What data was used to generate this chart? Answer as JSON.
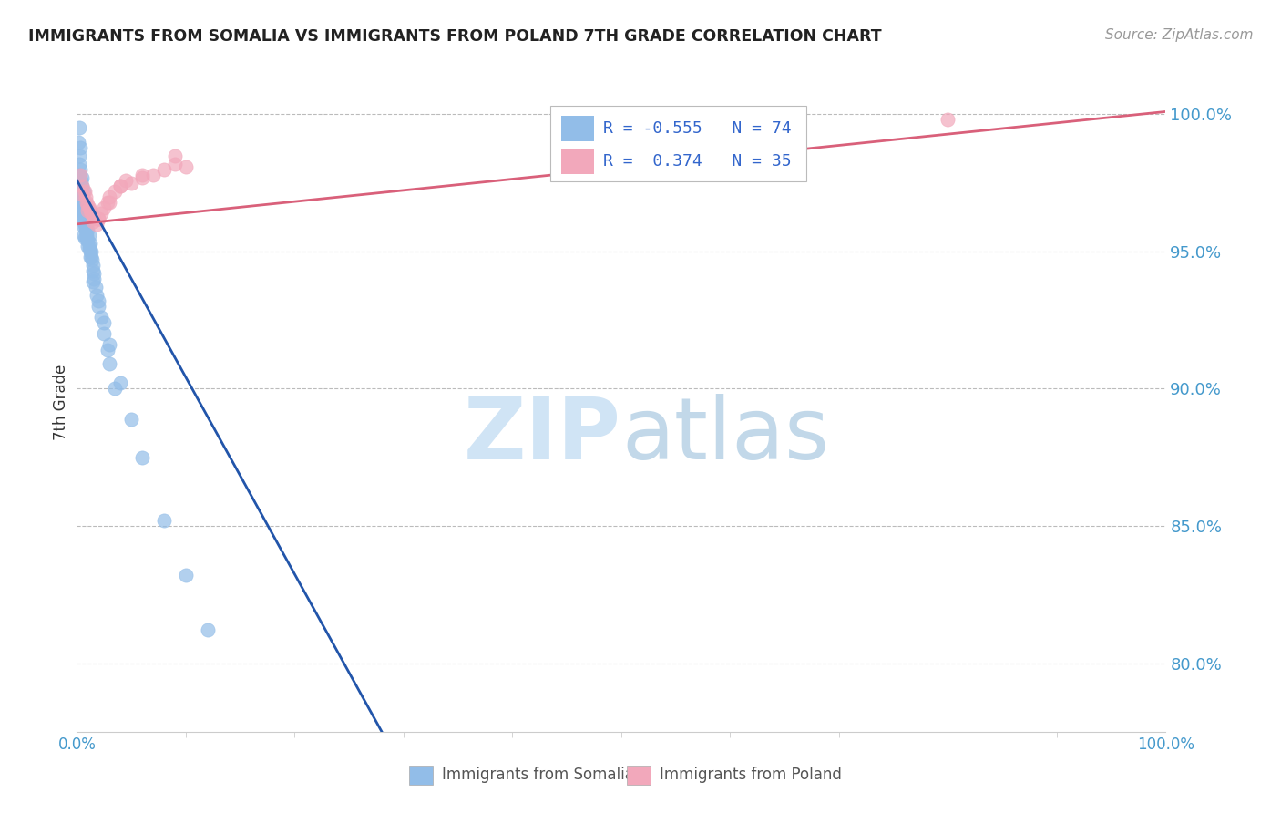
{
  "title": "IMMIGRANTS FROM SOMALIA VS IMMIGRANTS FROM POLAND 7TH GRADE CORRELATION CHART",
  "source": "Source: ZipAtlas.com",
  "ylabel": "7th Grade",
  "y_tick_vals": [
    0.8,
    0.85,
    0.9,
    0.95,
    1.0
  ],
  "xmin": 0.0,
  "xmax": 1.0,
  "ymin": 0.775,
  "ymax": 1.015,
  "somalia_color": "#92BDE8",
  "poland_color": "#F2A8BB",
  "somalia_line_color": "#2255AA",
  "poland_line_color": "#D9607A",
  "background": "#FFFFFF",
  "grid_color": "#BBBBBB",
  "ytick_color": "#4499CC",
  "xtick_color": "#4499CC",
  "watermark_color": "#D0E4F5",
  "legend_text_color": "#3366CC",
  "title_color": "#222222",
  "source_color": "#999999",
  "bottom_label_color": "#555555",
  "somalia_scatter_x": [
    0.001,
    0.002,
    0.002,
    0.003,
    0.003,
    0.004,
    0.004,
    0.005,
    0.005,
    0.005,
    0.006,
    0.006,
    0.006,
    0.007,
    0.007,
    0.007,
    0.008,
    0.008,
    0.009,
    0.009,
    0.01,
    0.01,
    0.011,
    0.011,
    0.012,
    0.012,
    0.013,
    0.014,
    0.015,
    0.016,
    0.002,
    0.003,
    0.003,
    0.004,
    0.004,
    0.005,
    0.005,
    0.006,
    0.006,
    0.007,
    0.008,
    0.009,
    0.01,
    0.011,
    0.012,
    0.013,
    0.015,
    0.016,
    0.017,
    0.018,
    0.02,
    0.022,
    0.025,
    0.028,
    0.03,
    0.035,
    0.002,
    0.003,
    0.004,
    0.005,
    0.006,
    0.007,
    0.008,
    0.009,
    0.015,
    0.02,
    0.025,
    0.03,
    0.04,
    0.05,
    0.06,
    0.08,
    0.1,
    0.12
  ],
  "somalia_scatter_y": [
    0.99,
    0.985,
    0.978,
    0.975,
    0.97,
    0.972,
    0.966,
    0.968,
    0.974,
    0.963,
    0.967,
    0.961,
    0.956,
    0.965,
    0.96,
    0.955,
    0.962,
    0.958,
    0.96,
    0.955,
    0.958,
    0.952,
    0.956,
    0.951,
    0.953,
    0.948,
    0.95,
    0.947,
    0.945,
    0.942,
    0.982,
    0.98,
    0.973,
    0.968,
    0.963,
    0.971,
    0.965,
    0.964,
    0.959,
    0.963,
    0.959,
    0.956,
    0.954,
    0.952,
    0.95,
    0.948,
    0.943,
    0.94,
    0.937,
    0.934,
    0.93,
    0.926,
    0.92,
    0.914,
    0.909,
    0.9,
    0.995,
    0.988,
    0.976,
    0.977,
    0.972,
    0.968,
    0.965,
    0.961,
    0.939,
    0.932,
    0.924,
    0.916,
    0.902,
    0.889,
    0.875,
    0.852,
    0.832,
    0.812
  ],
  "poland_scatter_x": [
    0.003,
    0.005,
    0.007,
    0.008,
    0.009,
    0.01,
    0.011,
    0.012,
    0.013,
    0.015,
    0.016,
    0.018,
    0.02,
    0.022,
    0.025,
    0.028,
    0.03,
    0.035,
    0.04,
    0.045,
    0.05,
    0.06,
    0.07,
    0.08,
    0.09,
    0.1,
    0.005,
    0.01,
    0.015,
    0.02,
    0.03,
    0.04,
    0.06,
    0.09,
    0.8
  ],
  "poland_scatter_y": [
    0.978,
    0.974,
    0.972,
    0.97,
    0.968,
    0.967,
    0.966,
    0.965,
    0.964,
    0.963,
    0.962,
    0.96,
    0.962,
    0.964,
    0.966,
    0.968,
    0.97,
    0.972,
    0.974,
    0.976,
    0.975,
    0.977,
    0.978,
    0.98,
    0.982,
    0.981,
    0.971,
    0.965,
    0.961,
    0.962,
    0.968,
    0.974,
    0.978,
    0.985,
    0.998
  ],
  "somalia_line_x0": 0.0,
  "somalia_line_y0": 0.976,
  "somalia_line_x1": 0.28,
  "somalia_line_y1": 0.775,
  "poland_line_x0": 0.0,
  "poland_line_y0": 0.96,
  "poland_line_x1": 1.0,
  "poland_line_y1": 1.001
}
